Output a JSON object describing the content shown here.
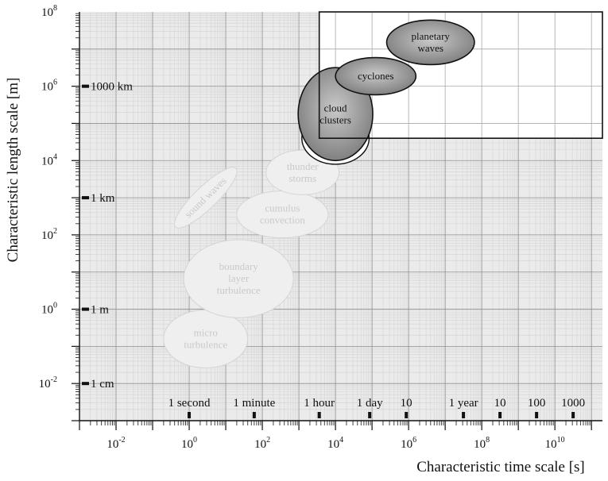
{
  "axes": {
    "x_title": "Characteristic time scale [s]",
    "y_title": "Characteristic length scale [m]",
    "x_ticks": [
      {
        "base": "10",
        "exp": "-2",
        "value": -2
      },
      {
        "base": "10",
        "exp": "0",
        "value": 0
      },
      {
        "base": "10",
        "exp": "2",
        "value": 2
      },
      {
        "base": "10",
        "exp": "4",
        "value": 4
      },
      {
        "base": "10",
        "exp": "6",
        "value": 6
      },
      {
        "base": "10",
        "exp": "8",
        "value": 8
      },
      {
        "base": "10",
        "exp": "10",
        "value": 10
      }
    ],
    "y_ticks": [
      {
        "base": "10",
        "exp": "-2",
        "value": -2
      },
      {
        "base": "10",
        "exp": "0",
        "value": 0
      },
      {
        "base": "10",
        "exp": "2",
        "value": 2
      },
      {
        "base": "10",
        "exp": "4",
        "value": 4
      },
      {
        "base": "10",
        "exp": "6",
        "value": 6
      },
      {
        "base": "10",
        "exp": "8",
        "value": 8
      }
    ],
    "x_range": [
      -3,
      11.3
    ],
    "y_range": [
      -3,
      8
    ],
    "scale": "log10"
  },
  "time_units": [
    {
      "label": "1 second",
      "value": 0
    },
    {
      "label": "1 minute",
      "value": 1.778
    },
    {
      "label": "1 hour",
      "value": 3.556
    },
    {
      "label": "1 day",
      "value": 4.936
    },
    {
      "label": "10",
      "value": 5.936
    },
    {
      "label": "1 year",
      "value": 7.499
    },
    {
      "label": "10",
      "value": 8.499
    },
    {
      "label": "100",
      "value": 9.499
    },
    {
      "label": "1000",
      "value": 10.499
    }
  ],
  "length_units": [
    {
      "label": "1 cm",
      "value": -2
    },
    {
      "label": "1 m",
      "value": 0
    },
    {
      "label": "1 km",
      "value": 3
    },
    {
      "label": "1000 km",
      "value": 6
    }
  ],
  "highlight_box": {
    "x": [
      3.556,
      11.3
    ],
    "y": [
      4.6,
      8
    ]
  },
  "scales": [
    {
      "lines": [
        "micro",
        "turbulence"
      ],
      "x": 0.45,
      "y": -0.8,
      "rx": 1.15,
      "ry": 0.78,
      "rot": 0,
      "style": "light"
    },
    {
      "lines": [
        "boundary",
        "layer",
        "turbulence"
      ],
      "x": 1.35,
      "y": 0.82,
      "rx": 1.5,
      "ry": 1.05,
      "rot": 0,
      "style": "light"
    },
    {
      "lines": [
        "cumulus",
        "convection"
      ],
      "x": 2.55,
      "y": 2.55,
      "rx": 1.25,
      "ry": 0.63,
      "rot": 0,
      "style": "light"
    },
    {
      "lines": [
        "thunder",
        "storms"
      ],
      "x": 3.1,
      "y": 3.68,
      "rx": 1.0,
      "ry": 0.6,
      "rot": 0,
      "style": "light"
    },
    {
      "lines": [
        "sound waves"
      ],
      "x": 0.45,
      "y": 3.0,
      "rx": 1.15,
      "ry": 0.3,
      "rot": -44,
      "style": "light"
    },
    {
      "lines": [],
      "x": 4.0,
      "y": 4.6,
      "rx": 0.92,
      "ry": 0.7,
      "rot": 0,
      "style": "white"
    },
    {
      "lines": [
        "cloud",
        "clusters"
      ],
      "x": 4.0,
      "y": 5.25,
      "rx": 1.02,
      "ry": 1.25,
      "rot": 0,
      "style": "dark"
    },
    {
      "lines": [
        "cyclones"
      ],
      "x": 5.1,
      "y": 6.27,
      "rx": 1.1,
      "ry": 0.5,
      "rot": 0,
      "style": "dark"
    },
    {
      "lines": [
        "planetary",
        "waves"
      ],
      "x": 6.6,
      "y": 7.18,
      "rx": 1.2,
      "ry": 0.6,
      "rot": 0,
      "style": "dark"
    }
  ],
  "colors": {
    "background": "#ebebeb",
    "grid_major": "#8e8e8e",
    "grid_minor": "#d6d6d6",
    "dark_ellipse": "#8f8f8f",
    "light_ellipse": "#efefef",
    "light_text": "#c9c9c9"
  }
}
